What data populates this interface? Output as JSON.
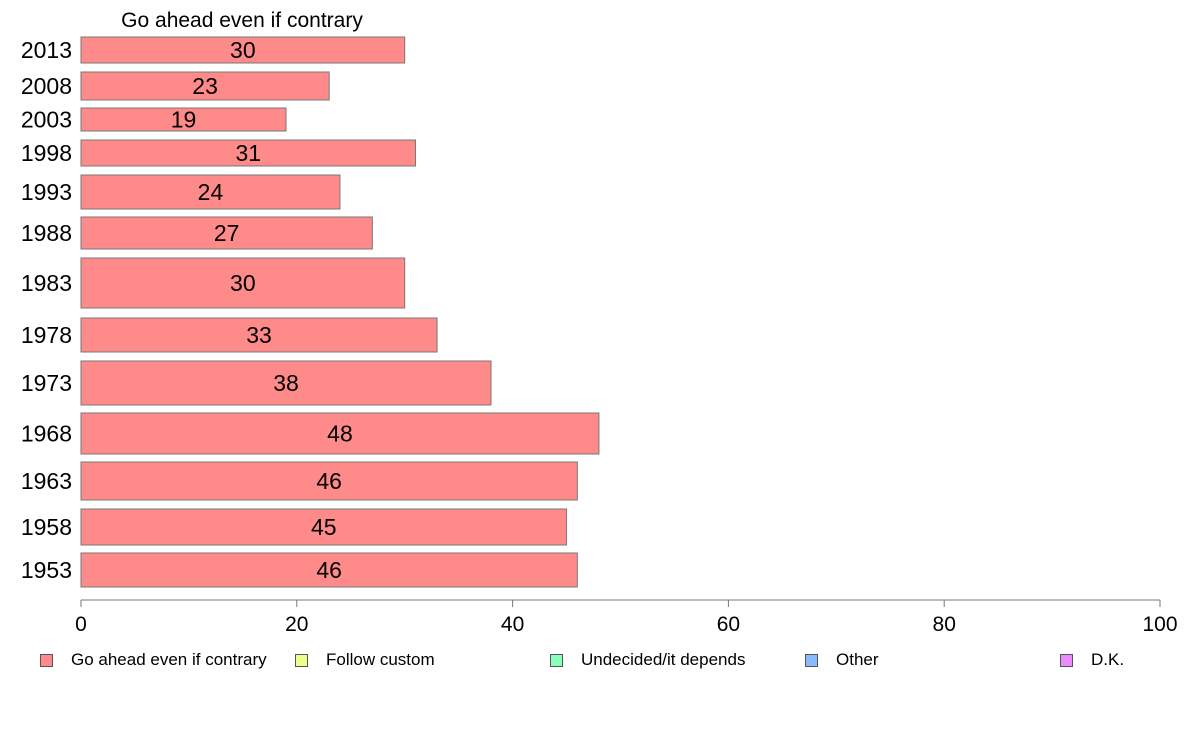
{
  "chart_data": {
    "type": "bar",
    "orientation": "horizontal",
    "title": "Go ahead even if contrary",
    "categories": [
      "2013",
      "2008",
      "2003",
      "1998",
      "1993",
      "1988",
      "1983",
      "1978",
      "1973",
      "1968",
      "1963",
      "1958",
      "1953"
    ],
    "series": [
      {
        "name": "Go ahead even if contrary",
        "color": "#ff8a8a",
        "values": [
          30,
          23,
          19,
          31,
          24,
          27,
          30,
          33,
          38,
          48,
          46,
          45,
          46
        ]
      }
    ],
    "data_labels": [
      "30",
      "23",
      "19",
      "31",
      "24",
      "27",
      "30",
      "33",
      "38",
      "48",
      "46",
      "45",
      "46"
    ],
    "xlim": [
      0,
      100
    ],
    "xticks": [
      "0",
      "20",
      "40",
      "60",
      "80",
      "100"
    ],
    "xlabel": "",
    "ylabel": "",
    "grid": false,
    "legend_position": "bottom",
    "legend": [
      {
        "label": "Go ahead even if contrary",
        "color": "#ff8a8a"
      },
      {
        "label": "Follow custom",
        "color": "#ecff8a"
      },
      {
        "label": "Undecided/it depends",
        "color": "#8affb9"
      },
      {
        "label": "Other",
        "color": "#8ab9ff"
      },
      {
        "label": "D.K.",
        "color": "#ec8aff"
      }
    ]
  }
}
